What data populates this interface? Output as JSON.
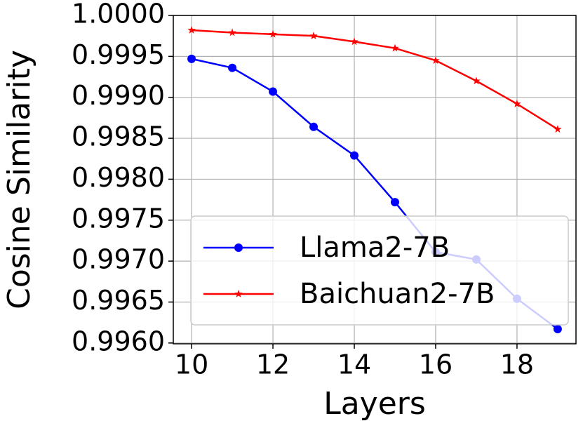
{
  "chart_data": {
    "type": "line",
    "x_label": "Layers",
    "y_label": "Cosine Similarity",
    "x": [
      10,
      11,
      12,
      13,
      14,
      15,
      16,
      17,
      18,
      19
    ],
    "series": [
      {
        "name": "Llama2-7B",
        "color": "#0000ff",
        "marker": "circle",
        "values": [
          0.99947,
          0.99936,
          0.99907,
          0.99864,
          0.99829,
          0.99772,
          0.99711,
          0.99702,
          0.99654,
          0.99617
        ]
      },
      {
        "name": "Baichuan2-7B",
        "color": "#ff0000",
        "marker": "star",
        "values": [
          0.99982,
          0.99979,
          0.99977,
          0.99975,
          0.99968,
          0.9996,
          0.99945,
          0.9992,
          0.99892,
          0.99861
        ]
      }
    ],
    "xlim": [
      9.55,
      19.45
    ],
    "xticks": [
      10,
      12,
      14,
      16,
      18
    ],
    "ylim": [
      0.99599,
      1.0
    ],
    "yticks": [
      {
        "value": 0.996,
        "label": "0.9960"
      },
      {
        "value": 0.9965,
        "label": "0.9965"
      },
      {
        "value": 0.997,
        "label": "0.9970"
      },
      {
        "value": 0.9975,
        "label": "0.9975"
      },
      {
        "value": 0.998,
        "label": "0.9980"
      },
      {
        "value": 0.9985,
        "label": "0.9985"
      },
      {
        "value": 0.999,
        "label": "0.9990"
      },
      {
        "value": 0.9995,
        "label": "0.9995"
      },
      {
        "value": 1.0,
        "label": "1.0000"
      }
    ],
    "grid": true,
    "legend": "lower right"
  }
}
